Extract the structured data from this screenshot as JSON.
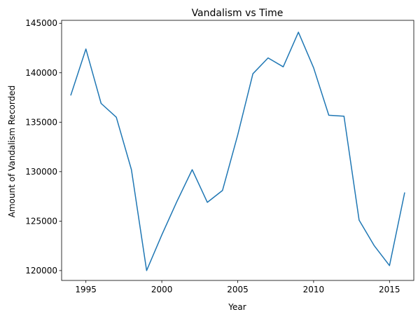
{
  "chart_data": {
    "type": "line",
    "title": "Vandalism vs Time",
    "xlabel": "Year",
    "ylabel": "Amount of Vandalism Recorded",
    "xlim": [
      1993.4,
      2016.6
    ],
    "ylim": [
      119000,
      145300
    ],
    "xticks": [
      1995,
      2000,
      2005,
      2010,
      2015
    ],
    "yticks": [
      120000,
      125000,
      130000,
      135000,
      140000,
      145000
    ],
    "grid": false,
    "series": [
      {
        "color": "#1f77b4",
        "x": [
          1994,
          1995,
          1996,
          1997,
          1998,
          1999,
          2000,
          2001,
          2002,
          2003,
          2004,
          2005,
          2006,
          2007,
          2008,
          2009,
          2010,
          2011,
          2012,
          2013,
          2014,
          2015,
          2016
        ],
        "y": [
          137700,
          142400,
          136900,
          135500,
          130200,
          120000,
          123600,
          127000,
          130200,
          126900,
          128100,
          133700,
          139900,
          141500,
          140600,
          144100,
          140500,
          135700,
          135600,
          125100,
          122500,
          120500,
          127900
        ]
      }
    ]
  }
}
